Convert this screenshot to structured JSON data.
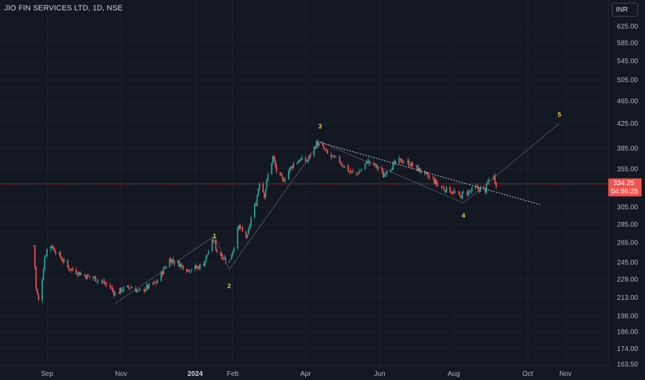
{
  "header": {
    "title": "JIO FIN SERVICES LTD, 1D, NSE",
    "currency": "INR"
  },
  "last_price": {
    "value": "334.25",
    "countdown": "04:56:25",
    "price": 334.25
  },
  "colors": {
    "background": "#131722",
    "up": "#26a69a",
    "down": "#ef5350",
    "grid": "#1e222d",
    "wave": "#f0d050"
  },
  "chart_data": {
    "type": "candlestick",
    "title": "JIO FIN SERVICES LTD, 1D, NSE",
    "y_scale": "log",
    "ylim": [
      163.5,
      690
    ],
    "y_ticks": [
      625,
      585,
      545,
      505,
      465,
      425,
      385,
      355,
      335,
      305,
      285,
      265,
      245,
      229,
      213,
      198,
      186,
      174,
      163.5
    ],
    "y_tick_labels": [
      "625.00",
      "585.00",
      "545.00",
      "505.00",
      "465.00",
      "425.00",
      "385.00",
      "355.00",
      "335.00",
      "305.00",
      "285.00",
      "265.00",
      "245.00",
      "229.00",
      "213.00",
      "198.00",
      "186.00",
      "174.00",
      "163.50"
    ],
    "x_labels": [
      {
        "label": "Sep",
        "date": "2023-09-01"
      },
      {
        "label": "Nov",
        "date": "2023-11-01"
      },
      {
        "label": "2024",
        "date": "2024-01-01",
        "bold": true
      },
      {
        "label": "Feb",
        "date": "2024-02-01"
      },
      {
        "label": "Apr",
        "date": "2024-04-01"
      },
      {
        "label": "Jun",
        "date": "2024-06-01"
      },
      {
        "label": "Aug",
        "date": "2024-08-01"
      },
      {
        "label": "Oct",
        "date": "2024-10-01"
      },
      {
        "label": "Nov",
        "date": "2024-11-01"
      }
    ],
    "price_path": [
      [
        "2023-08-21",
        262
      ],
      [
        "2023-08-23",
        220
      ],
      [
        "2023-08-25",
        210
      ],
      [
        "2023-08-28",
        230
      ],
      [
        "2023-08-30",
        250
      ],
      [
        "2023-09-01",
        258
      ],
      [
        "2023-09-04",
        262
      ],
      [
        "2023-09-07",
        258
      ],
      [
        "2023-09-12",
        250
      ],
      [
        "2023-09-18",
        240
      ],
      [
        "2023-09-25",
        236
      ],
      [
        "2023-10-03",
        232
      ],
      [
        "2023-10-10",
        230
      ],
      [
        "2023-10-17",
        226
      ],
      [
        "2023-10-23",
        222
      ],
      [
        "2023-10-27",
        216
      ],
      [
        "2023-11-02",
        220
      ],
      [
        "2023-11-09",
        222
      ],
      [
        "2023-11-16",
        218
      ],
      [
        "2023-11-23",
        222
      ],
      [
        "2023-11-30",
        226
      ],
      [
        "2023-12-05",
        236
      ],
      [
        "2023-12-11",
        248
      ],
      [
        "2023-12-18",
        244
      ],
      [
        "2023-12-26",
        238
      ],
      [
        "2024-01-03",
        240
      ],
      [
        "2024-01-08",
        244
      ],
      [
        "2024-01-12",
        256
      ],
      [
        "2024-01-16",
        268
      ],
      [
        "2024-01-19",
        256
      ],
      [
        "2024-01-24",
        250
      ],
      [
        "2024-01-29",
        245
      ],
      [
        "2024-02-02",
        262
      ],
      [
        "2024-02-06",
        282
      ],
      [
        "2024-02-09",
        276
      ],
      [
        "2024-02-13",
        270
      ],
      [
        "2024-02-16",
        292
      ],
      [
        "2024-02-20",
        310
      ],
      [
        "2024-02-23",
        338
      ],
      [
        "2024-02-27",
        320
      ],
      [
        "2024-03-01",
        346
      ],
      [
        "2024-03-05",
        372
      ],
      [
        "2024-03-08",
        352
      ],
      [
        "2024-03-13",
        338
      ],
      [
        "2024-03-18",
        352
      ],
      [
        "2024-03-22",
        362
      ],
      [
        "2024-03-27",
        368
      ],
      [
        "2024-04-02",
        366
      ],
      [
        "2024-04-05",
        375
      ],
      [
        "2024-04-10",
        393
      ],
      [
        "2024-04-15",
        386
      ],
      [
        "2024-04-19",
        376
      ],
      [
        "2024-04-24",
        370
      ],
      [
        "2024-04-29",
        366
      ],
      [
        "2024-05-03",
        358
      ],
      [
        "2024-05-08",
        350
      ],
      [
        "2024-05-13",
        348
      ],
      [
        "2024-05-17",
        354
      ],
      [
        "2024-05-22",
        366
      ],
      [
        "2024-05-27",
        360
      ],
      [
        "2024-05-31",
        356
      ],
      [
        "2024-06-04",
        345
      ],
      [
        "2024-06-07",
        354
      ],
      [
        "2024-06-12",
        360
      ],
      [
        "2024-06-17",
        366
      ],
      [
        "2024-06-21",
        366
      ],
      [
        "2024-06-26",
        362
      ],
      [
        "2024-07-01",
        356
      ],
      [
        "2024-07-05",
        352
      ],
      [
        "2024-07-10",
        344
      ],
      [
        "2024-07-15",
        340
      ],
      [
        "2024-07-19",
        332
      ],
      [
        "2024-07-24",
        328
      ],
      [
        "2024-07-29",
        326
      ],
      [
        "2024-08-02",
        322
      ],
      [
        "2024-08-06",
        318
      ],
      [
        "2024-08-09",
        322
      ],
      [
        "2024-08-14",
        324
      ],
      [
        "2024-08-19",
        328
      ],
      [
        "2024-08-23",
        328
      ],
      [
        "2024-08-27",
        326
      ],
      [
        "2024-08-30",
        340
      ],
      [
        "2024-09-03",
        344
      ],
      [
        "2024-09-05",
        334
      ]
    ],
    "wave_count": [
      {
        "label": "1",
        "date": "2024-01-17",
        "price": 272,
        "line_price": 272
      },
      {
        "label": "2",
        "date": "2024-01-29",
        "price": 223,
        "line_price": 238
      },
      {
        "label": "3",
        "date": "2024-04-13",
        "price": 420,
        "line_price": 395
      },
      {
        "label": "4",
        "date": "2024-08-09",
        "price": 295,
        "line_price": 310
      },
      {
        "label": "5",
        "date": "2024-10-27",
        "price": 440,
        "line_price": 425
      }
    ],
    "wave_start": {
      "date": "2023-10-27",
      "price": 208
    },
    "trendline": {
      "start": {
        "date": "2024-04-13",
        "price": 394
      },
      "end": {
        "date": "2024-10-11",
        "price": 308
      }
    }
  }
}
